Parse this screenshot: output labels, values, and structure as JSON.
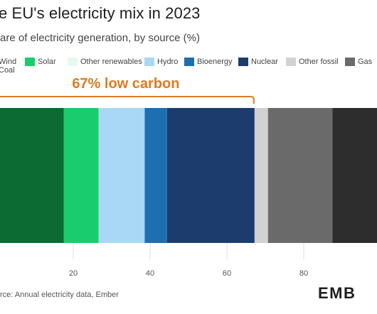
{
  "chart_data": {
    "type": "bar",
    "orientation": "horizontal",
    "stacked": true,
    "title": "e EU's electricity mix in 2023",
    "subtitle": "are of electricity generation, by source (%)",
    "legend": [
      {
        "name": "Wind",
        "color": "#0b6b33"
      },
      {
        "name": "Solar",
        "color": "#19cd6e"
      },
      {
        "name": "Other renewables",
        "color": "#e7f9ef"
      },
      {
        "name": "Hydro",
        "color": "#a9d8f4"
      },
      {
        "name": "Bioenergy",
        "color": "#1d6fb0"
      },
      {
        "name": "Nuclear",
        "color": "#1d3c6e"
      },
      {
        "name": "Other fossil",
        "color": "#d2d2d2"
      },
      {
        "name": "Gas",
        "color": "#6a6a6a"
      },
      {
        "name": "Coal",
        "color": "#2d2d2d"
      }
    ],
    "legend_placement": "top",
    "series": [
      {
        "name": "Wind",
        "value": 17.5,
        "color": "#0b6b33"
      },
      {
        "name": "Solar",
        "value": 9.1,
        "color": "#19cd6e"
      },
      {
        "name": "Hydro",
        "value": 12.0,
        "color": "#a9d8f4"
      },
      {
        "name": "Bioenergy",
        "value": 5.8,
        "color": "#1d6fb0"
      },
      {
        "name": "Nuclear",
        "value": 22.8,
        "color": "#1d3c6e"
      },
      {
        "name": "Other fossil",
        "value": 3.5,
        "color": "#d2d2d2"
      },
      {
        "name": "Gas",
        "value": 16.8,
        "color": "#6a6a6a"
      },
      {
        "name": "Coal",
        "value": 12.5,
        "color": "#2d2d2d"
      }
    ],
    "xlim": [
      0,
      100
    ],
    "xticks": [
      0,
      20,
      40,
      60,
      80
    ],
    "xtick_labels": [
      "0",
      "20",
      "40",
      "60",
      "80"
    ],
    "gridlines": true,
    "annotation": {
      "text": "67% low carbon",
      "from": 0,
      "to": 67,
      "color": "#e07a1f"
    },
    "source": "rce: Annual electricity data, Ember"
  },
  "branding": {
    "logo_text": "EMB"
  }
}
